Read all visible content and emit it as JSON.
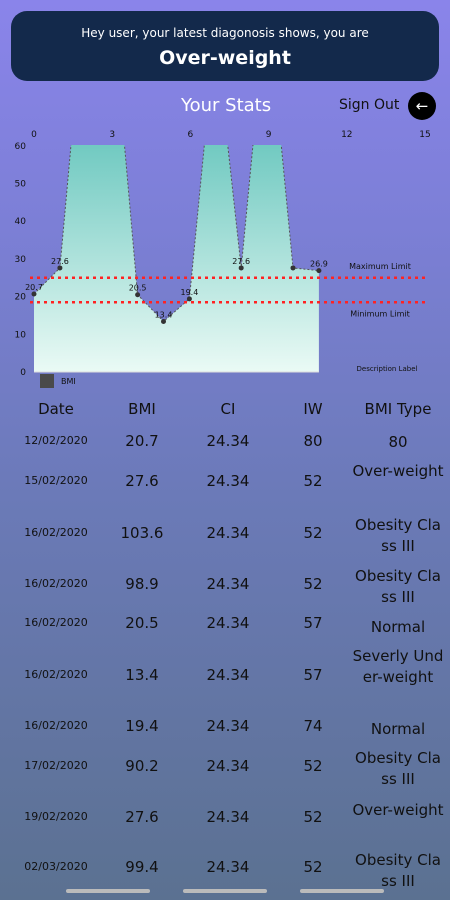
{
  "banner": {
    "message": "Hey user, your latest diagonosis shows, you are",
    "diagnosis": "Over-weight"
  },
  "header": {
    "title": "Your Stats",
    "sign_out": "Sign Out",
    "back_icon": "arrow-left-icon"
  },
  "chart_data": {
    "type": "area",
    "x": [
      0,
      1,
      2,
      3,
      4,
      5,
      6,
      7,
      8,
      9,
      10,
      11
    ],
    "values": [
      20.7,
      27.6,
      103.6,
      98.9,
      20.5,
      13.4,
      19.4,
      90.2,
      27.6,
      99.4,
      27.6,
      26.9
    ],
    "point_labels": [
      "20.7",
      "27.6",
      "",
      "",
      "20.5",
      "13.4",
      "19.4",
      "",
      "27.6",
      "",
      "",
      "26.9"
    ],
    "x_ticks": [
      "0",
      "3",
      "6",
      "9",
      "12",
      "15"
    ],
    "y_ticks": [
      "0",
      "10",
      "20",
      "30",
      "40",
      "50",
      "60"
    ],
    "xlim": [
      0,
      15
    ],
    "ylim": [
      0,
      60
    ],
    "limit_lines": [
      {
        "label": "Maximum Limit",
        "value": 25,
        "color": "#ff2222"
      },
      {
        "label": "Minimum Limit",
        "value": 18.5,
        "color": "#ff2222"
      }
    ],
    "description_label": "Description Label",
    "legend": "BMI",
    "fill_top_color": "#1aa79c",
    "fill_bottom_color": "#eafaf5"
  },
  "table": {
    "headers": [
      "Date",
      "BMI",
      "CI",
      "IW",
      "BMI Type"
    ],
    "rows": [
      {
        "date": "12/02/2020",
        "bmi": "20.7",
        "ci": "24.34",
        "iw": "80",
        "type": "80"
      },
      {
        "date": "15/02/2020",
        "bmi": "27.6",
        "ci": "24.34",
        "iw": "52",
        "type": "Over-weight"
      },
      {
        "date": "16/02/2020",
        "bmi": "103.6",
        "ci": "24.34",
        "iw": "52",
        "type": "Obesity Class III"
      },
      {
        "date": "16/02/2020",
        "bmi": "98.9",
        "ci": "24.34",
        "iw": "52",
        "type": "Obesity Class III"
      },
      {
        "date": "16/02/2020",
        "bmi": "20.5",
        "ci": "24.34",
        "iw": "57",
        "type": "Normal"
      },
      {
        "date": "16/02/2020",
        "bmi": "13.4",
        "ci": "24.34",
        "iw": "57",
        "type": "Severly Under-weight"
      },
      {
        "date": "16/02/2020",
        "bmi": "19.4",
        "ci": "24.34",
        "iw": "74",
        "type": "Normal"
      },
      {
        "date": "17/02/2020",
        "bmi": "90.2",
        "ci": "24.34",
        "iw": "52",
        "type": "Obesity Class III"
      },
      {
        "date": "19/02/2020",
        "bmi": "27.6",
        "ci": "24.34",
        "iw": "52",
        "type": "Over-weight"
      },
      {
        "date": "02/03/2020",
        "bmi": "99.4",
        "ci": "24.34",
        "iw": "52",
        "type": "Obesity Class III"
      }
    ]
  }
}
